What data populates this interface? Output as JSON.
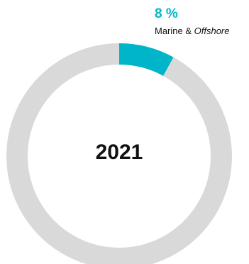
{
  "chart_data": {
    "type": "pie",
    "variant": "donut",
    "year": "2021",
    "slices": [
      {
        "label": "Marine & Offshore",
        "value": 8,
        "value_label": "8 %",
        "color": "#00b5c8",
        "highlighted": true
      },
      {
        "label": "",
        "value": 92,
        "color": "#d9d9d9",
        "highlighted": false
      }
    ]
  },
  "callout": {
    "value_text": "8 %",
    "label_main": "Marine & ",
    "label_italic": "Offshore"
  },
  "colors": {
    "accent": "#00b5c8",
    "rest": "#d9d9d9",
    "text": "#111111"
  }
}
